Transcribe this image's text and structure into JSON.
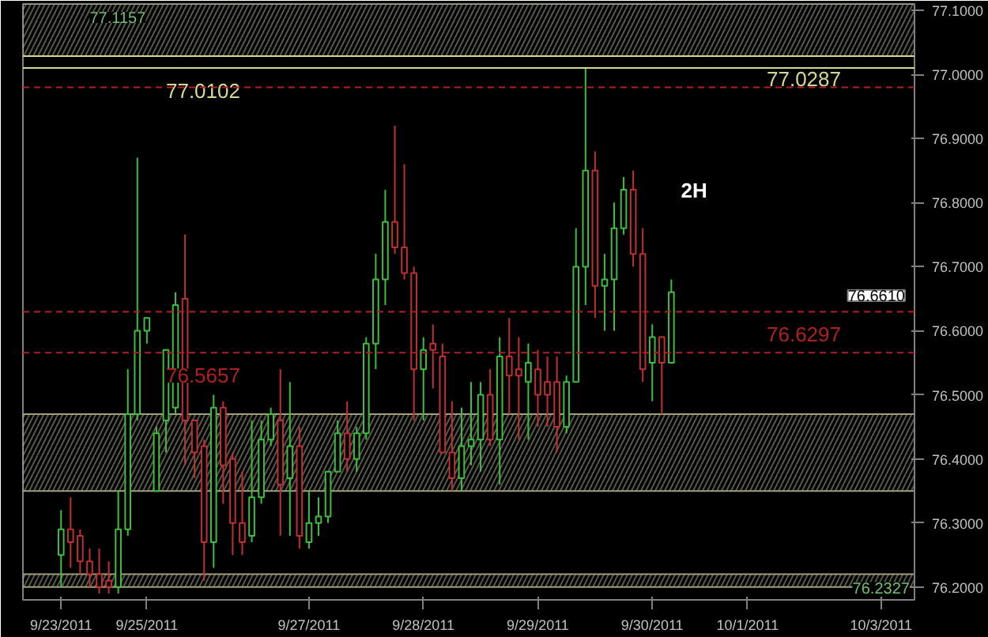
{
  "chart_data": {
    "type": "candlestick",
    "categories": [
      "9/23/2011",
      null,
      null,
      null,
      null,
      null,
      null,
      null,
      null,
      "9/25/2011",
      null,
      null,
      null,
      null,
      null,
      null,
      null,
      null,
      null,
      null,
      null,
      null,
      null,
      null,
      null,
      null,
      "9/27/2011",
      null,
      null,
      null,
      null,
      null,
      null,
      null,
      null,
      null,
      null,
      null,
      "9/28/2011",
      null,
      null,
      null,
      null,
      null,
      null,
      null,
      null,
      null,
      null,
      null,
      "9/29/2011",
      null,
      null,
      null,
      null,
      null,
      null,
      null,
      null,
      null,
      null,
      null,
      "9/30/2011",
      null,
      null,
      null,
      null,
      null,
      null,
      null,
      null,
      null,
      "10/1/2011",
      null,
      null,
      null,
      null,
      null,
      null,
      null,
      null,
      null,
      null,
      null,
      null,
      null,
      "10/3/2011",
      null,
      null,
      null
    ],
    "ohlc": [
      [
        76.25,
        76.32,
        76.2,
        76.29
      ],
      [
        76.29,
        76.34,
        76.23,
        76.27
      ],
      [
        76.28,
        76.29,
        76.22,
        76.24
      ],
      [
        76.24,
        76.26,
        76.2,
        76.22
      ],
      [
        76.22,
        76.26,
        76.19,
        76.2
      ],
      [
        76.21,
        76.24,
        76.19,
        76.2
      ],
      [
        76.2,
        76.35,
        76.19,
        76.29
      ],
      [
        76.29,
        76.54,
        76.28,
        76.47
      ],
      [
        76.47,
        76.87,
        76.46,
        76.6
      ],
      [
        76.6,
        76.62,
        76.58,
        76.62
      ],
      [
        76.35,
        76.45,
        76.35,
        76.44
      ],
      [
        76.46,
        76.57,
        76.41,
        76.57
      ],
      [
        76.48,
        76.66,
        76.47,
        76.64
      ],
      [
        76.65,
        76.75,
        76.39,
        76.46
      ],
      [
        76.46,
        76.46,
        76.37,
        76.41
      ],
      [
        76.42,
        76.43,
        76.21,
        76.27
      ],
      [
        76.27,
        76.5,
        76.23,
        76.48
      ],
      [
        76.48,
        76.49,
        76.33,
        76.39
      ],
      [
        76.4,
        76.41,
        76.25,
        76.3
      ],
      [
        76.3,
        76.38,
        76.25,
        76.27
      ],
      [
        76.28,
        76.46,
        76.27,
        76.34
      ],
      [
        76.34,
        76.46,
        76.33,
        76.43
      ],
      [
        76.43,
        76.48,
        76.42,
        76.47
      ],
      [
        76.46,
        76.54,
        76.28,
        76.36
      ],
      [
        76.37,
        76.52,
        76.28,
        76.42
      ],
      [
        76.42,
        76.45,
        76.26,
        76.28
      ],
      [
        76.27,
        76.35,
        76.26,
        76.3
      ],
      [
        76.3,
        76.34,
        76.28,
        76.31
      ],
      [
        76.31,
        76.38,
        76.3,
        76.38
      ],
      [
        76.38,
        76.46,
        76.38,
        76.44
      ],
      [
        76.44,
        76.49,
        76.38,
        76.4
      ],
      [
        76.4,
        76.45,
        76.38,
        76.44
      ],
      [
        76.44,
        76.59,
        76.43,
        76.58
      ],
      [
        76.58,
        76.72,
        76.54,
        76.68
      ],
      [
        76.68,
        76.82,
        76.64,
        76.77
      ],
      [
        76.77,
        76.92,
        76.72,
        76.73
      ],
      [
        76.73,
        76.86,
        76.68,
        76.69
      ],
      [
        76.69,
        76.7,
        76.46,
        76.54
      ],
      [
        76.54,
        76.59,
        76.46,
        76.57
      ],
      [
        76.58,
        76.61,
        76.51,
        76.57
      ],
      [
        76.56,
        76.58,
        76.41,
        76.41
      ],
      [
        76.41,
        76.49,
        76.35,
        76.37
      ],
      [
        76.37,
        76.48,
        76.35,
        76.42
      ],
      [
        76.42,
        76.52,
        76.39,
        76.43
      ],
      [
        76.43,
        76.52,
        76.38,
        76.5
      ],
      [
        76.5,
        76.54,
        76.42,
        76.43
      ],
      [
        76.43,
        76.59,
        76.36,
        76.56
      ],
      [
        76.56,
        76.62,
        76.47,
        76.53
      ],
      [
        76.54,
        76.59,
        76.43,
        76.53
      ],
      [
        76.52,
        76.58,
        76.43,
        76.55
      ],
      [
        76.54,
        76.57,
        76.45,
        76.5
      ],
      [
        76.52,
        76.56,
        76.45,
        76.5
      ],
      [
        76.52,
        76.56,
        76.41,
        76.45
      ],
      [
        76.45,
        76.53,
        76.44,
        76.52
      ],
      [
        76.52,
        76.76,
        76.52,
        76.7
      ],
      [
        76.7,
        77.01,
        76.64,
        76.85
      ],
      [
        76.85,
        76.88,
        76.62,
        76.67
      ],
      [
        76.67,
        76.72,
        76.6,
        76.68
      ],
      [
        76.68,
        76.8,
        76.6,
        76.76
      ],
      [
        76.76,
        76.84,
        76.75,
        76.82
      ],
      [
        76.82,
        76.85,
        76.7,
        76.72
      ],
      [
        76.72,
        76.76,
        76.52,
        76.54
      ],
      [
        76.55,
        76.61,
        76.49,
        76.59
      ],
      [
        76.59,
        76.59,
        76.47,
        76.55
      ],
      [
        76.55,
        76.68,
        76.55,
        76.66
      ],
      null,
      null,
      null,
      null,
      null,
      null,
      null,
      null,
      null,
      null,
      null,
      null,
      null,
      null,
      null,
      null,
      null,
      null,
      null,
      null,
      null,
      null,
      null,
      null,
      null
    ],
    "ylim": [
      76.18,
      77.11
    ],
    "yticks": [
      {
        "value": 76.2,
        "label": "76.2000"
      },
      {
        "value": 76.3,
        "label": "76.3000"
      },
      {
        "value": 76.4,
        "label": "76.4000"
      },
      {
        "value": 76.5,
        "label": "76.5000"
      },
      {
        "value": 76.6,
        "label": "76.6000"
      },
      {
        "value": 76.7,
        "label": "76.7000"
      },
      {
        "value": 76.8,
        "label": "76.8000"
      },
      {
        "value": 76.9,
        "label": "76.9000"
      },
      {
        "value": 77.0,
        "label": "77.0000"
      },
      {
        "value": 77.1,
        "label": "77.1000"
      }
    ],
    "grid": false,
    "ref_lines": [
      {
        "axis": "y",
        "value": 77.0102,
        "label": "77.0102",
        "color": "#d8d890",
        "line_style": "solid"
      },
      {
        "axis": "y",
        "value": 77.0287,
        "label": "77.0287",
        "color": "#d8d890",
        "line_style": "solid"
      },
      {
        "axis": "y",
        "value": 76.5657,
        "label": "76.5657",
        "color": "#b02020",
        "line_style": "dashed"
      },
      {
        "axis": "y",
        "value": 76.6297,
        "label": "76.6297",
        "color": "#b02020",
        "line_style": "dashed"
      },
      {
        "axis": "y",
        "value": 76.98,
        "color": "#b02020",
        "line_style": "dashed"
      }
    ],
    "bands": [
      {
        "axis": "y",
        "from": 77.0287,
        "to": 77.11,
        "label": "77.1157",
        "color": "#a0a080"
      },
      {
        "axis": "y",
        "from": 76.35,
        "to": 76.47,
        "color": "#a0a080"
      },
      {
        "axis": "y",
        "from": 76.2,
        "to": 76.22,
        "label": "76.2327",
        "color": "#a0a080"
      }
    ],
    "annotations": [
      "2H",
      "76.6610"
    ]
  }
}
